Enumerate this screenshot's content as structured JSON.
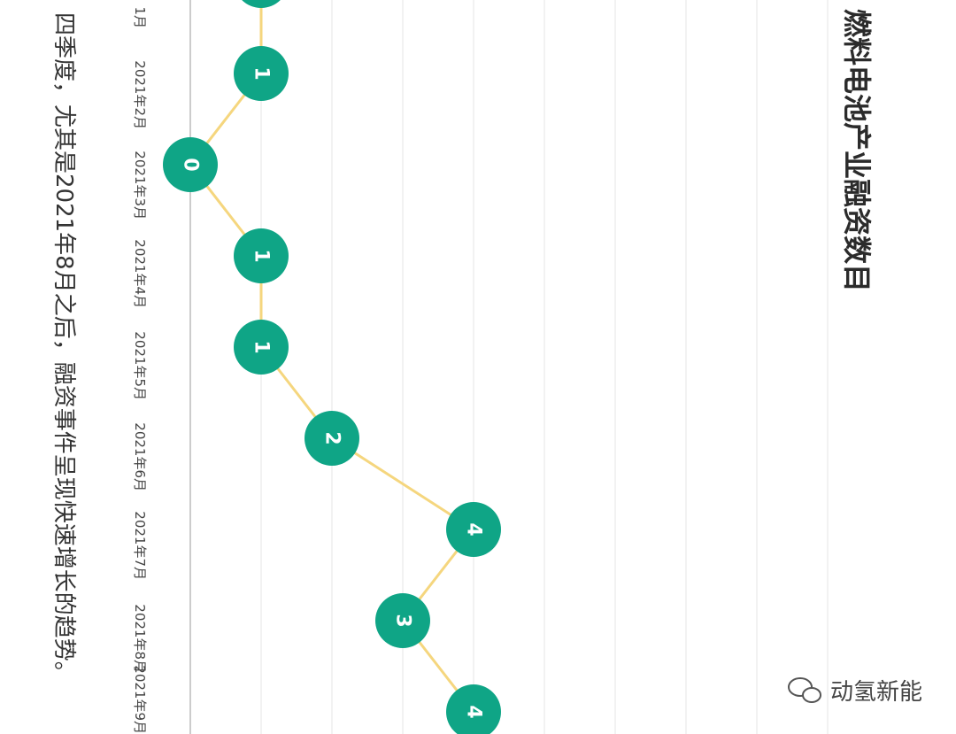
{
  "chart_data": {
    "type": "line",
    "title": "燃料电池产业融资数目",
    "x": [
      "1月",
      "2021年2月",
      "2021年3月",
      "2021年4月",
      "2021年5月",
      "2021年6月",
      "2021年7月",
      "2021年8月",
      "2021年9月"
    ],
    "series": [
      {
        "values": [
          null,
          1,
          0,
          1,
          1,
          2,
          4,
          3,
          4
        ]
      }
    ],
    "ylim": [
      0,
      9
    ],
    "grid": true,
    "colors": {
      "line": "#f5d67e",
      "marker": "#0fa586",
      "grid": "#e6e6e6",
      "axis": "#cccccc"
    }
  },
  "caption": "四季度，尤其是2021年8月之后，融资事件呈现快速增长的趋势。",
  "watermark": "动氢新能"
}
